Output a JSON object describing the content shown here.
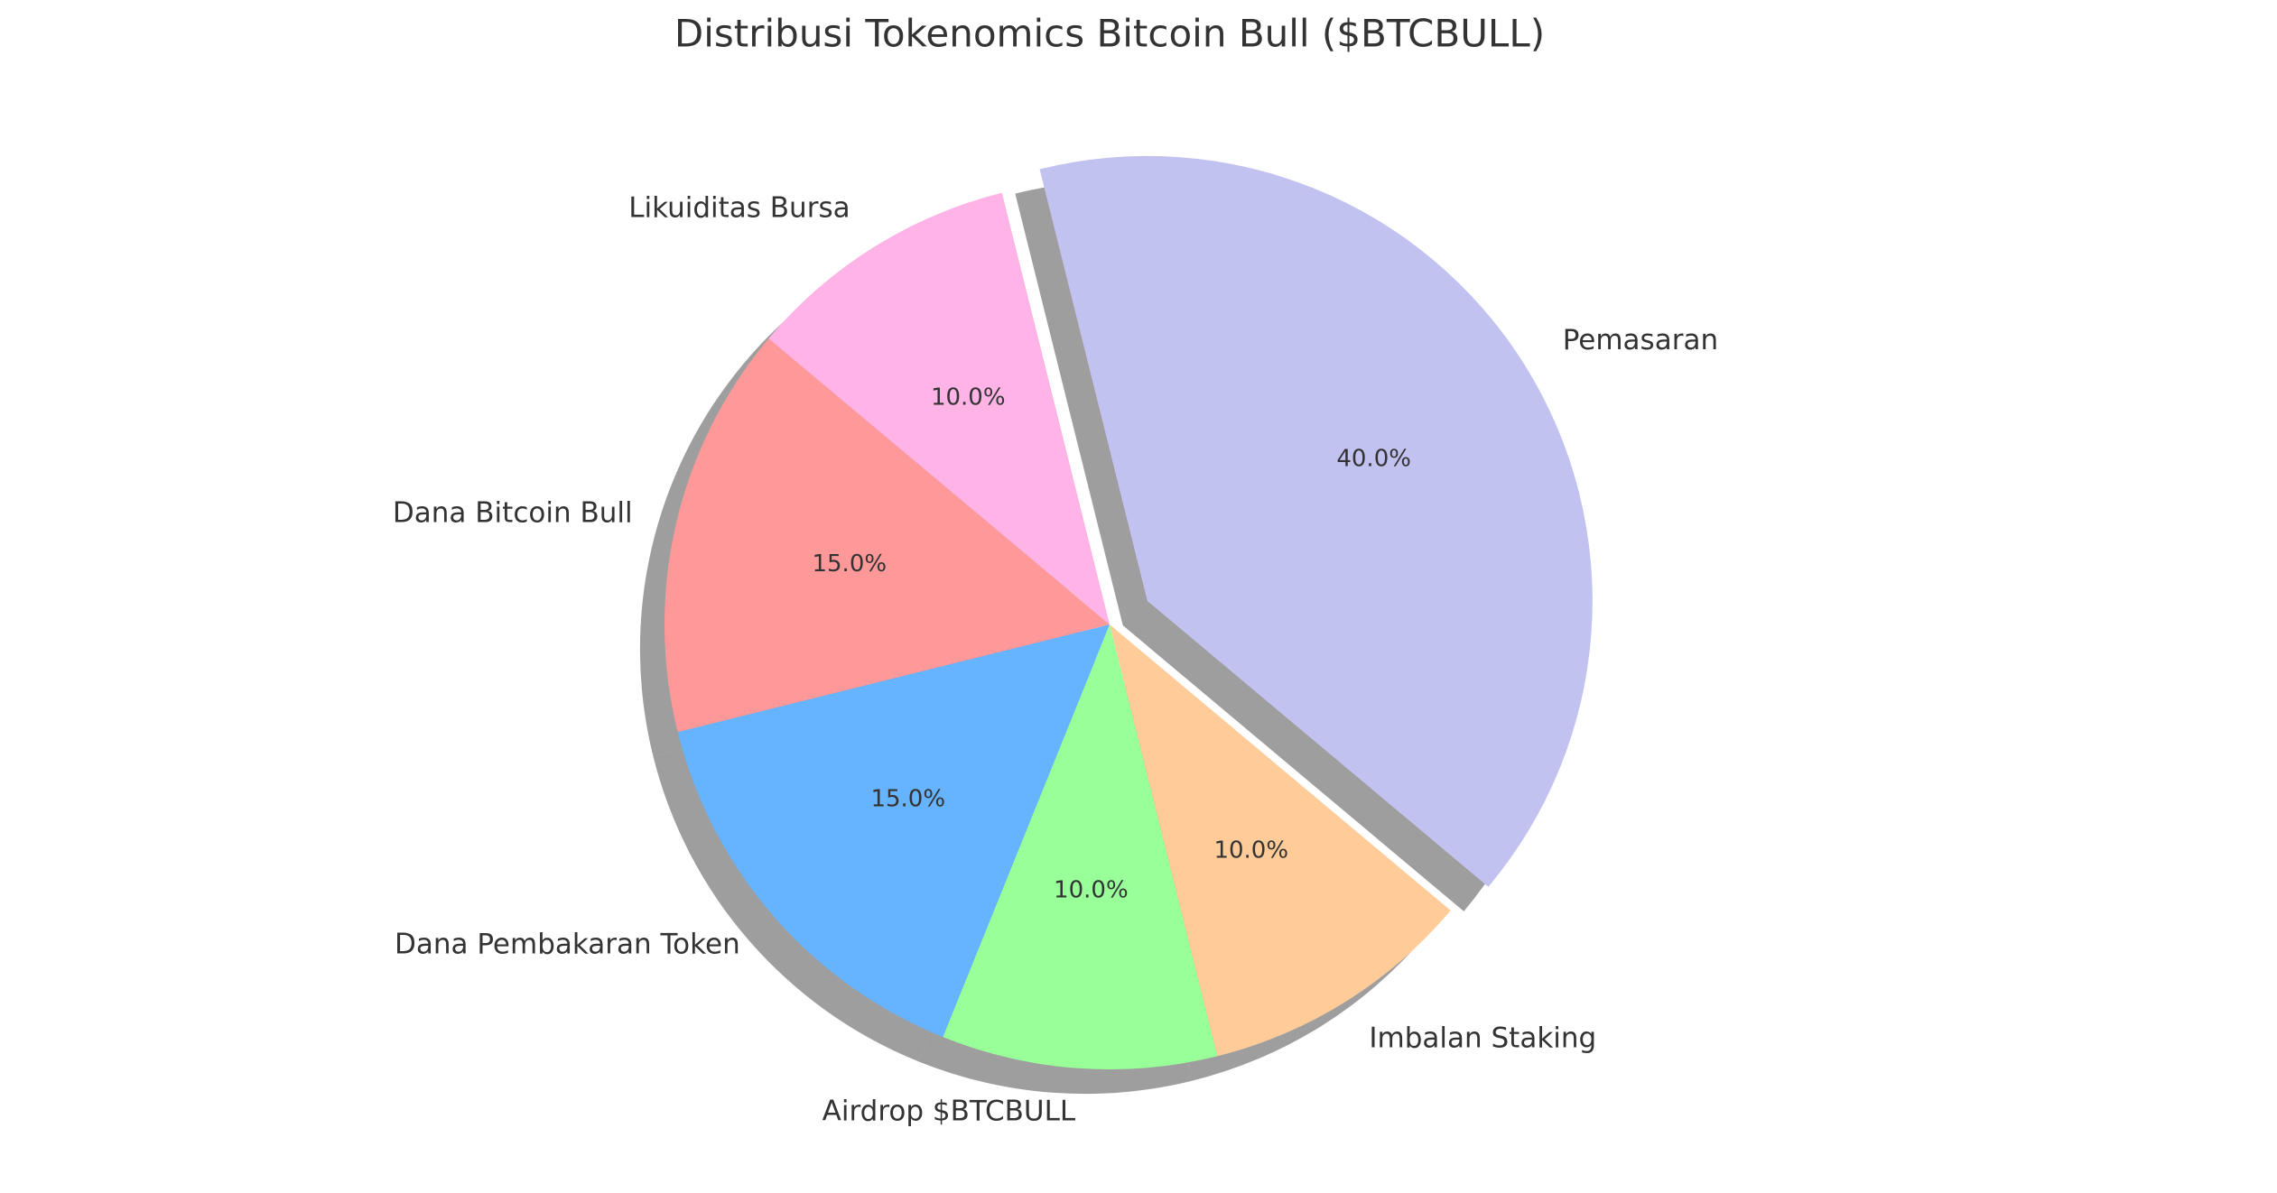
{
  "chart_data": {
    "type": "pie",
    "title": "Distribusi Tokenomics Bitcoin Bull ($BTCBULL)",
    "categories": [
      "Pemasaran",
      "Imbalan Staking",
      "Airdrop $BTCBULL",
      "Dana Pembakaran Token",
      "Dana Bitcoin Bull",
      "Likuiditas Bursa"
    ],
    "values": [
      40,
      10,
      10,
      15,
      15,
      10
    ],
    "value_labels": [
      "40.0%",
      "10.0%",
      "10.0%",
      "15.0%",
      "15.0%",
      "10.0%"
    ],
    "colors": [
      "#c2c2f0",
      "#ffcc99",
      "#99ff99",
      "#66b3ff",
      "#ff9999",
      "#ffb3e6"
    ],
    "explode": [
      0.1,
      0,
      0,
      0,
      0,
      0
    ],
    "startangle": 104,
    "counterclock": false,
    "shadow": true
  }
}
